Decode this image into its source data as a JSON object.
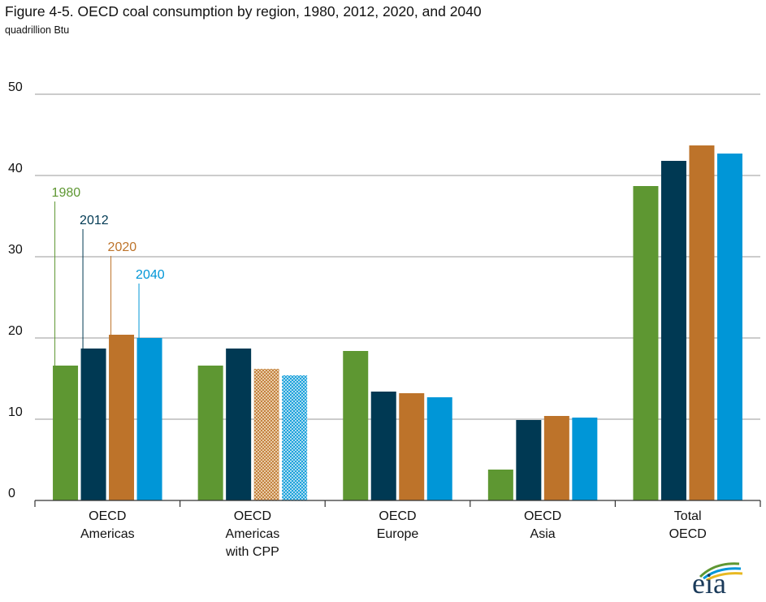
{
  "title": "Figure 4-5. OECD coal consumption by region, 1980, 2012, 2020, and 2040",
  "subtitle": "quadrillion Btu",
  "logo_text": "eia",
  "colors": {
    "1980": "#5e9732",
    "2012": "#003953",
    "2020": "#bd732a",
    "2040": "#0096d7",
    "grid": "#999999",
    "axis": "#333333"
  },
  "chart_data": {
    "type": "bar",
    "categories": [
      [
        "OECD",
        "Americas"
      ],
      [
        "OECD",
        "Americas",
        "with CPP"
      ],
      [
        "OECD",
        "Europe"
      ],
      [
        "OECD",
        "Asia"
      ],
      [
        "Total",
        "OECD"
      ]
    ],
    "series": [
      {
        "name": "1980",
        "color": "#5e9732",
        "values": [
          16.6,
          16.6,
          18.4,
          3.8,
          38.7
        ]
      },
      {
        "name": "2012",
        "color": "#003953",
        "values": [
          18.7,
          18.7,
          13.4,
          9.9,
          41.8
        ]
      },
      {
        "name": "2020",
        "color": "#bd732a",
        "values": [
          20.4,
          16.2,
          13.2,
          10.4,
          43.7
        ]
      },
      {
        "name": "2040",
        "color": "#0096d7",
        "values": [
          20.0,
          15.4,
          12.7,
          10.2,
          42.7
        ]
      }
    ],
    "patterned": [
      [
        1,
        2
      ],
      [
        1,
        3
      ]
    ],
    "yticks": [
      0,
      10,
      20,
      30,
      40,
      50
    ],
    "ylim": [
      0,
      50
    ],
    "xlabel": "",
    "ylabel": "",
    "grid": true,
    "legend_placement": "callouts over the OECD Americas bars"
  }
}
